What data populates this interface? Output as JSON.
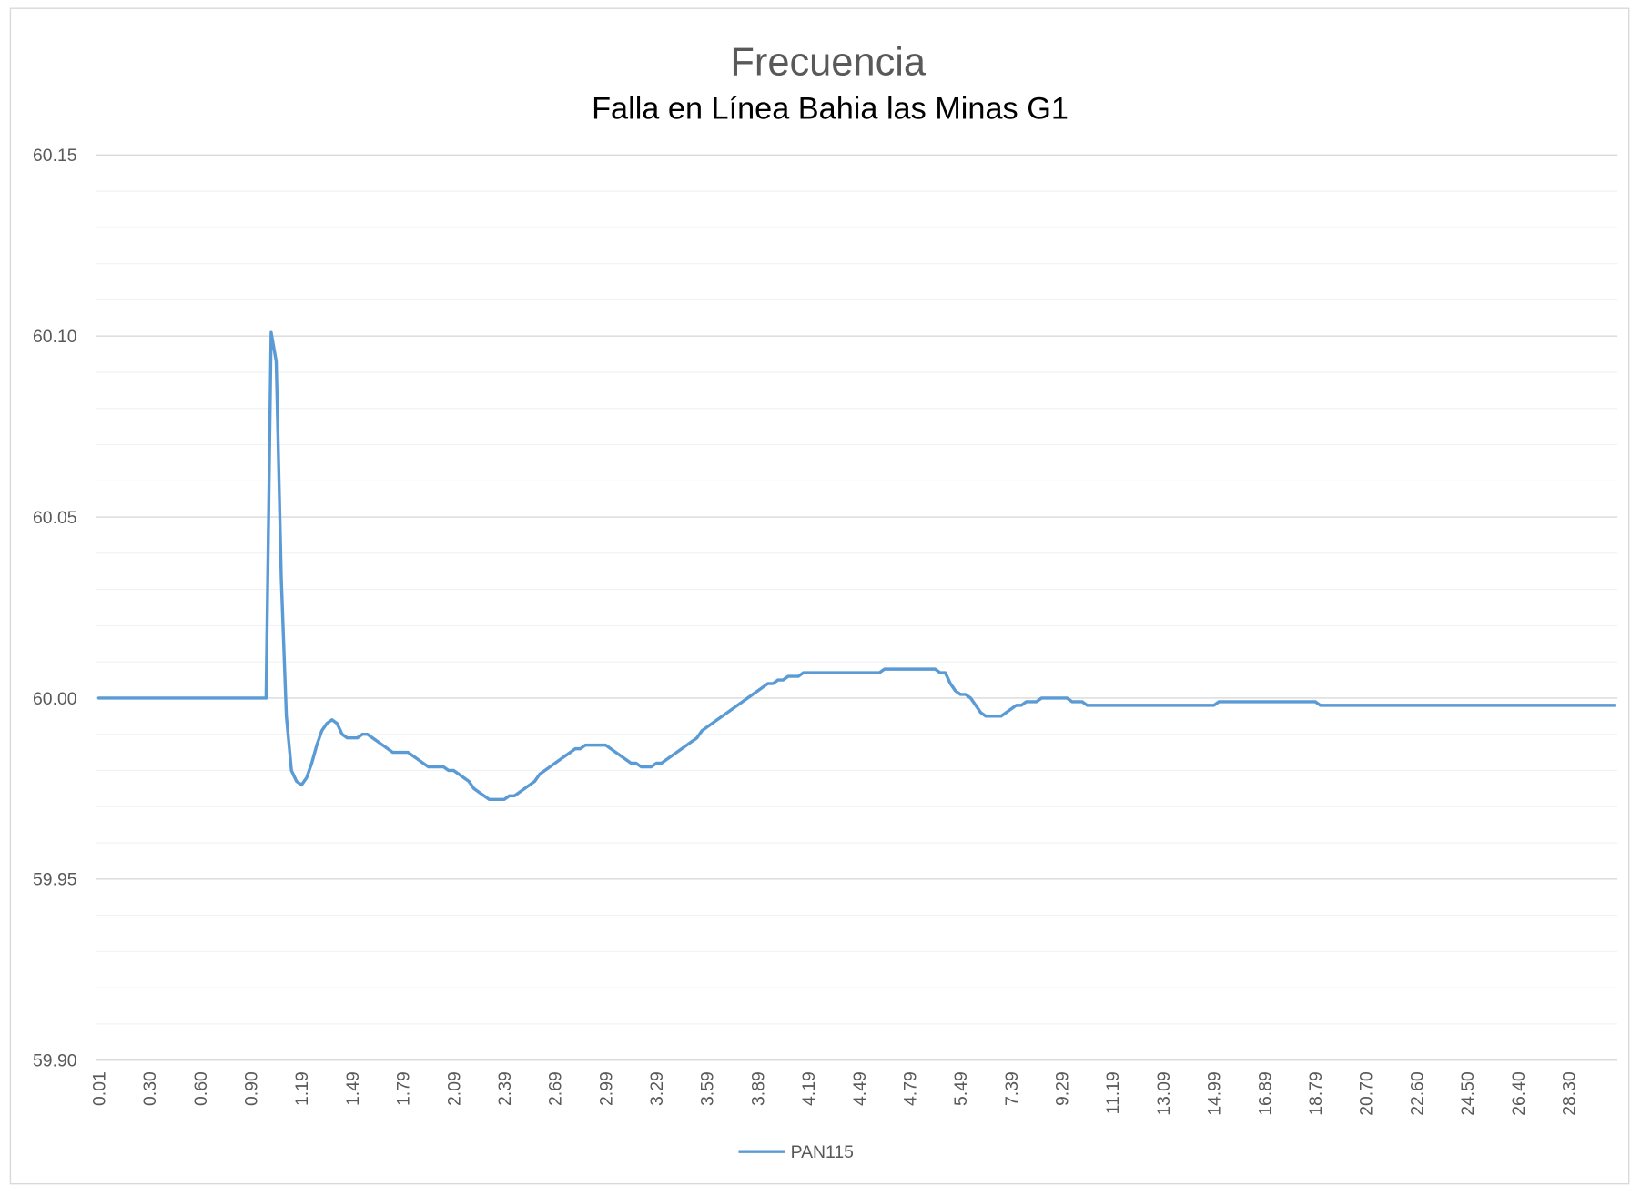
{
  "chart_data": {
    "type": "line",
    "title": "Frecuencia",
    "subtitle": "Falla en  Línea Bahia las Minas G1",
    "categories": [
      "0.01",
      null,
      null,
      null,
      null,
      null,
      null,
      null,
      null,
      null,
      "0.30",
      null,
      null,
      null,
      null,
      null,
      null,
      null,
      null,
      null,
      "0.60",
      null,
      null,
      null,
      null,
      null,
      null,
      null,
      null,
      null,
      "0.90",
      null,
      null,
      null,
      null,
      null,
      null,
      null,
      null,
      null,
      "1.19",
      null,
      null,
      null,
      null,
      null,
      null,
      null,
      null,
      null,
      "1.49",
      null,
      null,
      null,
      null,
      null,
      null,
      null,
      null,
      null,
      "1.79",
      null,
      null,
      null,
      null,
      null,
      null,
      null,
      null,
      null,
      "2.09",
      null,
      null,
      null,
      null,
      null,
      null,
      null,
      null,
      null,
      "2.39",
      null,
      null,
      null,
      null,
      null,
      null,
      null,
      null,
      null,
      "2.69",
      null,
      null,
      null,
      null,
      null,
      null,
      null,
      null,
      null,
      "2.99",
      null,
      null,
      null,
      null,
      null,
      null,
      null,
      null,
      null,
      "3.29",
      null,
      null,
      null,
      null,
      null,
      null,
      null,
      null,
      null,
      "3.59",
      null,
      null,
      null,
      null,
      null,
      null,
      null,
      null,
      null,
      "3.89",
      null,
      null,
      null,
      null,
      null,
      null,
      null,
      null,
      null,
      "4.19",
      null,
      null,
      null,
      null,
      null,
      null,
      null,
      null,
      null,
      "4.49",
      null,
      null,
      null,
      null,
      null,
      null,
      null,
      null,
      null,
      "4.79",
      null,
      null,
      null,
      null,
      null,
      null,
      null,
      null,
      null,
      "5.49",
      null,
      null,
      null,
      null,
      null,
      null,
      null,
      null,
      null,
      "7.39",
      null,
      null,
      null,
      null,
      null,
      null,
      null,
      null,
      null,
      "9.29",
      null,
      null,
      null,
      null,
      null,
      null,
      null,
      null,
      null,
      "11.19",
      null,
      null,
      null,
      null,
      null,
      null,
      null,
      null,
      null,
      "13.09",
      null,
      null,
      null,
      null,
      null,
      null,
      null,
      null,
      null,
      "14.99",
      null,
      null,
      null,
      null,
      null,
      null,
      null,
      null,
      null,
      "16.89",
      null,
      null,
      null,
      null,
      null,
      null,
      null,
      null,
      null,
      "18.79",
      null,
      null,
      null,
      null,
      null,
      null,
      null,
      null,
      null,
      "20.70",
      null,
      null,
      null,
      null,
      null,
      null,
      null,
      null,
      null,
      "22.60",
      null,
      null,
      null,
      null,
      null,
      null,
      null,
      null,
      null,
      "24.50",
      null,
      null,
      null,
      null,
      null,
      null,
      null,
      null,
      null,
      "26.40",
      null,
      null,
      null,
      null,
      null,
      null,
      null,
      null,
      null,
      "28.30",
      null,
      null,
      null,
      null,
      null,
      null,
      null,
      null,
      null
    ],
    "series": [
      {
        "name": "PAN115",
        "color": "#5b9bd5",
        "values": [
          60,
          60,
          60,
          60,
          60,
          60,
          60,
          60,
          60,
          60,
          60,
          60,
          60,
          60,
          60,
          60,
          60,
          60,
          60,
          60,
          60,
          60,
          60,
          60,
          60,
          60,
          60,
          60,
          60,
          60,
          60,
          60,
          60,
          60,
          60.101,
          60.093,
          60.033,
          59.995,
          59.98,
          59.977,
          59.976,
          59.978,
          59.982,
          59.987,
          59.991,
          59.993,
          59.994,
          59.993,
          59.99,
          59.989,
          59.989,
          59.989,
          59.99,
          59.99,
          59.989,
          59.988,
          59.987,
          59.986,
          59.985,
          59.985,
          59.985,
          59.985,
          59.984,
          59.983,
          59.982,
          59.981,
          59.981,
          59.981,
          59.981,
          59.98,
          59.98,
          59.979,
          59.978,
          59.977,
          59.975,
          59.974,
          59.973,
          59.972,
          59.972,
          59.972,
          59.972,
          59.973,
          59.973,
          59.974,
          59.975,
          59.976,
          59.977,
          59.979,
          59.98,
          59.981,
          59.982,
          59.983,
          59.984,
          59.985,
          59.986,
          59.986,
          59.987,
          59.987,
          59.987,
          59.987,
          59.987,
          59.986,
          59.985,
          59.984,
          59.983,
          59.982,
          59.982,
          59.981,
          59.981,
          59.981,
          59.982,
          59.982,
          59.983,
          59.984,
          59.985,
          59.986,
          59.987,
          59.988,
          59.989,
          59.991,
          59.992,
          59.993,
          59.994,
          59.995,
          59.996,
          59.997,
          59.998,
          59.999,
          60.0,
          60.001,
          60.002,
          60.003,
          60.004,
          60.004,
          60.005,
          60.005,
          60.006,
          60.006,
          60.006,
          60.007,
          60.007,
          60.007,
          60.007,
          60.007,
          60.007,
          60.007,
          60.007,
          60.007,
          60.007,
          60.007,
          60.007,
          60.007,
          60.007,
          60.007,
          60.007,
          60.008,
          60.008,
          60.008,
          60.008,
          60.008,
          60.008,
          60.008,
          60.008,
          60.008,
          60.008,
          60.008,
          60.007,
          60.007,
          60.004,
          60.002,
          60.001,
          60.001,
          60.0,
          59.998,
          59.996,
          59.995,
          59.995,
          59.995,
          59.995,
          59.996,
          59.997,
          59.998,
          59.998,
          59.999,
          59.999,
          59.999,
          60.0,
          60.0,
          60.0,
          60.0,
          60.0,
          60.0,
          59.999,
          59.999,
          59.999,
          59.998,
          59.998,
          59.998,
          59.998,
          59.998,
          59.998,
          59.998,
          59.998,
          59.998,
          59.998,
          59.998,
          59.998,
          59.998,
          59.998,
          59.998,
          59.998,
          59.998,
          59.998,
          59.998,
          59.998,
          59.998,
          59.998,
          59.998,
          59.998,
          59.998,
          59.998,
          59.999,
          59.999,
          59.999,
          59.999,
          59.999,
          59.999,
          59.999,
          59.999,
          59.999,
          59.999,
          59.999,
          59.999,
          59.999,
          59.999,
          59.999,
          59.999,
          59.999,
          59.999,
          59.999,
          59.999,
          59.998,
          59.998,
          59.998,
          59.998,
          59.998,
          59.998,
          59.998,
          59.998,
          59.998,
          59.998,
          59.998,
          59.998,
          59.998,
          59.998,
          59.998,
          59.998,
          59.998,
          59.998,
          59.998,
          59.998,
          59.998,
          59.998,
          59.998,
          59.998,
          59.998,
          59.998,
          59.998,
          59.998,
          59.998,
          59.998,
          59.998,
          59.998,
          59.998,
          59.998,
          59.998,
          59.998,
          59.998,
          59.998,
          59.998,
          59.998,
          59.998,
          59.998,
          59.998,
          59.998,
          59.998,
          59.998,
          59.998,
          59.998,
          59.998,
          59.998,
          59.998,
          59.998,
          59.998,
          59.998,
          59.998,
          59.998,
          59.998,
          59.998,
          59.998
        ]
      }
    ],
    "ylim": [
      59.9,
      60.15
    ],
    "yticks": [
      {
        "value": 59.9,
        "label": "59.90"
      },
      59.95,
      {
        "value": 60.0,
        "label": "60.00"
      },
      60.05,
      {
        "value": 60.1,
        "label": "60.10"
      },
      60.15
    ],
    "yminorticks": [
      59.91,
      59.92,
      59.93,
      59.94,
      59.96,
      59.97,
      59.98,
      59.99,
      60.01,
      60.02,
      60.03,
      60.04,
      60.06,
      60.07,
      60.08,
      60.09,
      60.11,
      60.12,
      60.13,
      60.14
    ],
    "grid": true,
    "legend": "bottom"
  }
}
